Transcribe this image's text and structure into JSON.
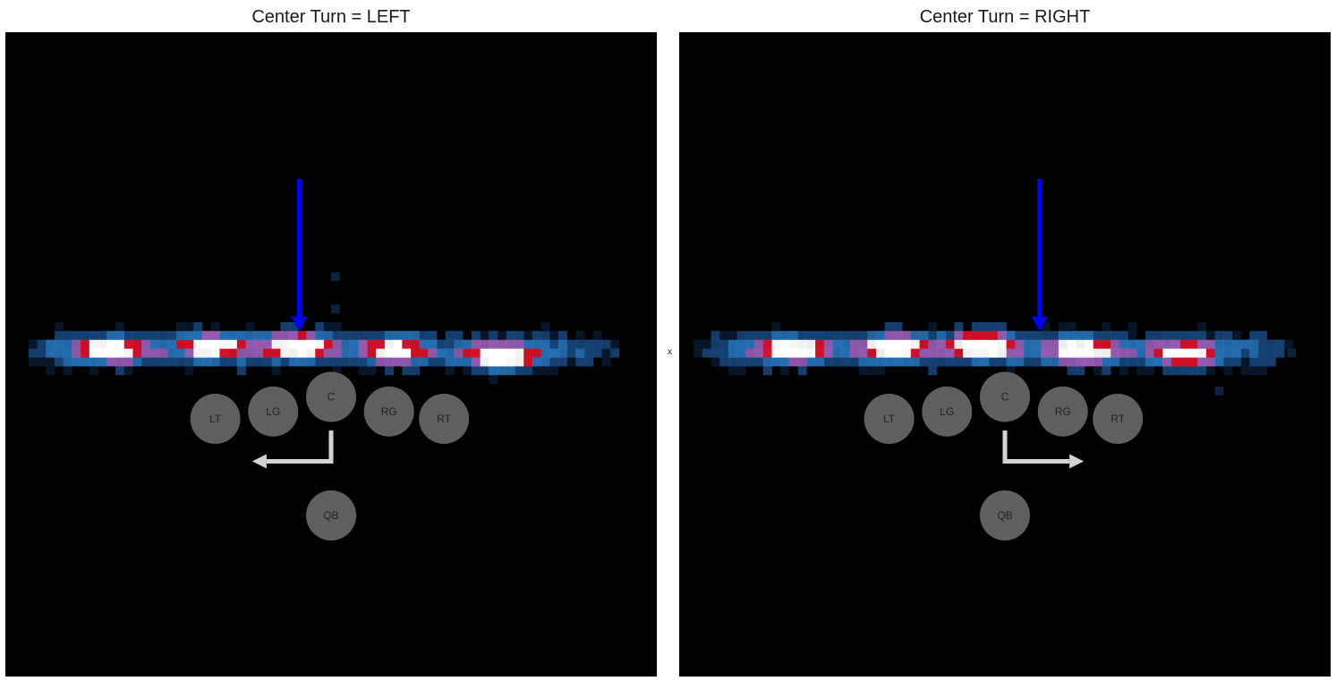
{
  "chart_data": [
    {
      "type": "heatmap",
      "title": "Center Turn = LEFT",
      "xlabel": "x",
      "axes_visible": false,
      "background": "#000000",
      "color_scale": [
        "#0c2340",
        "#1f5fa8",
        "#2f8fe6",
        "#b06bd0",
        "#e8122c",
        "#ffffff"
      ],
      "density_band": {
        "x_range": [
          1,
          42
        ],
        "y_range": [
          -2,
          2
        ],
        "hotspots": [
          {
            "x": 7,
            "y": 0,
            "intensity": 0.85
          },
          {
            "x": 14,
            "y": 0.3,
            "intensity": 0.8
          },
          {
            "x": 20,
            "y": 0.3,
            "intensity": 0.85
          },
          {
            "x": 26.5,
            "y": 0,
            "intensity": 0.75
          },
          {
            "x": 34,
            "y": -0.5,
            "intensity": 0.95
          }
        ],
        "outliers": [
          {
            "x": 22.5,
            "y": 5
          },
          {
            "x": 22.5,
            "y": 2.8
          }
        ]
      },
      "players": [
        {
          "label": "LT",
          "x": 14.5,
          "y": -4.4
        },
        {
          "label": "LG",
          "x": 18.5,
          "y": -3.9
        },
        {
          "label": "C",
          "x": 22.5,
          "y": -2.9
        },
        {
          "label": "RG",
          "x": 26.5,
          "y": -3.9
        },
        {
          "label": "RT",
          "x": 30.3,
          "y": -4.4
        },
        {
          "label": "QB",
          "x": 22.5,
          "y": -11
        }
      ],
      "arrows": [
        {
          "kind": "blue",
          "x": 20.3,
          "y_from": 12,
          "y_to": 1.6,
          "color": "#0000ff"
        },
        {
          "kind": "turn",
          "path": [
            [
              22.5,
              -5.2
            ],
            [
              22.5,
              -7.3
            ],
            [
              17.3,
              -7.3
            ]
          ],
          "color": "#d3d3d3"
        }
      ]
    },
    {
      "type": "heatmap",
      "title": "Center Turn = RIGHT",
      "xlabel": "x",
      "axes_visible": false,
      "background": "#000000",
      "color_scale": [
        "#0c2340",
        "#1f5fa8",
        "#2f8fe6",
        "#b06bd0",
        "#e8122c",
        "#ffffff"
      ],
      "density_band": {
        "x_range": [
          1,
          42
        ],
        "y_range": [
          -2,
          2
        ],
        "hotspots": [
          {
            "x": 7.5,
            "y": 0,
            "intensity": 0.85
          },
          {
            "x": 14.5,
            "y": 0.2,
            "intensity": 0.85
          },
          {
            "x": 20.7,
            "y": 0.4,
            "intensity": 1.0
          },
          {
            "x": 27.5,
            "y": 0,
            "intensity": 0.8
          },
          {
            "x": 34.5,
            "y": -0.3,
            "intensity": 0.8
          }
        ],
        "outliers": [
          {
            "x": 42,
            "y": -0.2
          },
          {
            "x": 37,
            "y": -2.8
          }
        ]
      },
      "players": [
        {
          "label": "LT",
          "x": 14.5,
          "y": -4.4
        },
        {
          "label": "LG",
          "x": 18.5,
          "y": -3.9
        },
        {
          "label": "C",
          "x": 22.5,
          "y": -2.9
        },
        {
          "label": "RG",
          "x": 26.5,
          "y": -3.9
        },
        {
          "label": "RT",
          "x": 30.3,
          "y": -4.4
        },
        {
          "label": "QB",
          "x": 22.5,
          "y": -11
        }
      ],
      "arrows": [
        {
          "kind": "blue",
          "x": 24.9,
          "y_from": 12,
          "y_to": 1.6,
          "color": "#0000ff"
        },
        {
          "kind": "turn",
          "path": [
            [
              22.5,
              -5.2
            ],
            [
              22.5,
              -7.3
            ],
            [
              27.7,
              -7.3
            ]
          ],
          "color": "#d3d3d3"
        }
      ]
    }
  ],
  "style": {
    "player_fill": "#5f5f5f",
    "player_text": "#222222",
    "page_background": "#ffffff"
  }
}
